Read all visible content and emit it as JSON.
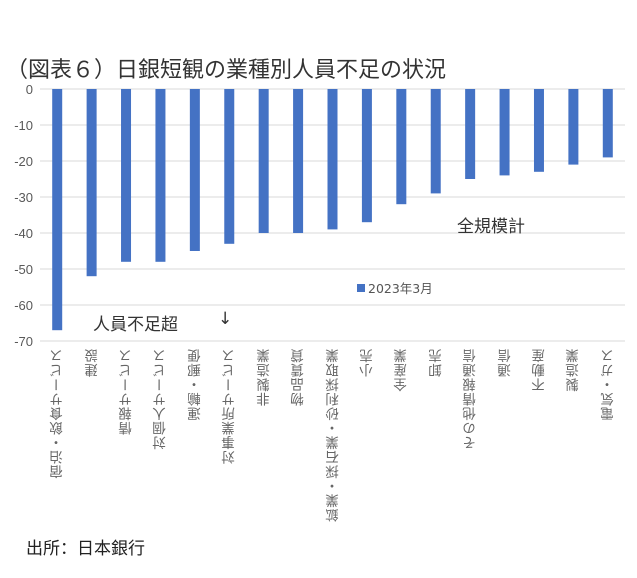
{
  "chart_data": {
    "type": "bar",
    "title": "（図表６）日銀短観の業種別人員不足の状況",
    "categories": [
      "宿泊・飲食サービス",
      "建設",
      "情報サービス",
      "対個人サービス",
      "運輸・郵便",
      "対事業所サービス",
      "非製造業",
      "物品賃貸",
      "鉱業・採石業・砂利採取業",
      "小売",
      "全産業",
      "卸売",
      "その他情報通信",
      "通信",
      "不動産",
      "製造業",
      "電気・ガス"
    ],
    "series": [
      {
        "name": "2023年3月",
        "values": [
          -67,
          -52,
          -48,
          -48,
          -45,
          -43,
          -40,
          -40,
          -39,
          -37,
          -32,
          -29,
          -25,
          -24,
          -23,
          -21,
          -19
        ]
      }
    ],
    "ylim": [
      -70,
      0
    ],
    "yticks": [
      0,
      -10,
      -20,
      -30,
      -40,
      -50,
      -60,
      -70
    ],
    "grid": true,
    "legend_position": "center",
    "annotations": [
      "全規模計",
      "人員不足超",
      "↓"
    ],
    "color": "#4472c4"
  },
  "source": "出所：日本銀行"
}
